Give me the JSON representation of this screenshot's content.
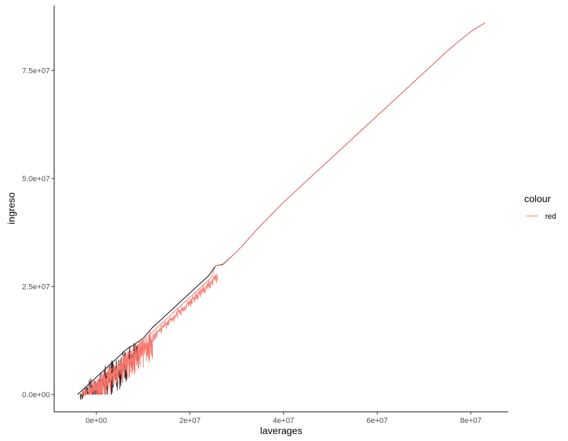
{
  "chart_data": {
    "type": "line",
    "title": "",
    "xlabel": "laverages",
    "ylabel": "ingreso",
    "xlim": [
      -9000000,
      88000000
    ],
    "ylim": [
      -4000000,
      90000000
    ],
    "grid": false,
    "legend_placement": "right",
    "x_ticks": [
      {
        "value": 0,
        "label": "0e+00"
      },
      {
        "value": 20000000,
        "label": "2e+07"
      },
      {
        "value": 40000000,
        "label": "4e+07"
      },
      {
        "value": 60000000,
        "label": "6e+07"
      },
      {
        "value": 80000000,
        "label": "8e+07"
      }
    ],
    "y_ticks": [
      {
        "value": 0,
        "label": "0.0e+00"
      },
      {
        "value": 25000000,
        "label": "2.5e+07"
      },
      {
        "value": 50000000,
        "label": "5.0e+07"
      },
      {
        "value": 75000000,
        "label": "7.5e+07"
      }
    ],
    "legend": {
      "title": "colour",
      "entries": [
        {
          "label": "red",
          "color": "#f8766d"
        }
      ]
    },
    "series": [
      {
        "color": "#000000",
        "x": [
          -4000000,
          -2500000,
          -1000000,
          500000,
          2000000,
          3500000,
          5000000,
          6500000,
          8000000,
          10000000,
          12000000,
          14000000,
          16000000,
          18000000,
          20000000,
          22000000,
          24000000,
          25500000,
          27000000,
          30000000,
          35000000,
          40000000,
          46000000,
          50000000,
          55000000,
          60000000,
          65000000,
          70000000,
          75000000,
          80000000,
          83000000
        ],
        "y": [
          0,
          1500000,
          3000000,
          4500000,
          6000000,
          7500000,
          9000000,
          10500000,
          11500000,
          13000000,
          15500000,
          17500000,
          19500000,
          21500000,
          23500000,
          25500000,
          27500000,
          29800000,
          30100000,
          33000000,
          39000000,
          44500000,
          50500000,
          54500000,
          59500000,
          64500000,
          69500000,
          74500000,
          79500000,
          84000000,
          86000000
        ]
      },
      {
        "name": "red",
        "color": "#f8766d",
        "x": [
          -3500000,
          -2000000,
          -500000,
          1000000,
          2500000,
          4000000,
          5500000,
          7000000,
          8500000,
          10500000,
          12500000,
          14500000,
          16500000,
          18500000,
          20500000,
          22500000,
          24500000,
          25500000,
          27000000,
          30000000,
          35000000,
          40000000,
          46000000,
          50000000,
          55000000,
          60000000,
          65000000,
          70000000,
          75000000,
          80000000,
          83000000
        ],
        "y": [
          0,
          800000,
          2000000,
          3500000,
          5000000,
          6500000,
          8000000,
          9500000,
          11000000,
          13000000,
          15000000,
          17000000,
          19000000,
          21000000,
          23000000,
          25000000,
          27000000,
          29800000,
          30000000,
          33000000,
          39000000,
          44500000,
          50500000,
          54500000,
          59500000,
          64500000,
          69500000,
          74500000,
          79500000,
          84000000,
          86000000
        ]
      }
    ]
  }
}
